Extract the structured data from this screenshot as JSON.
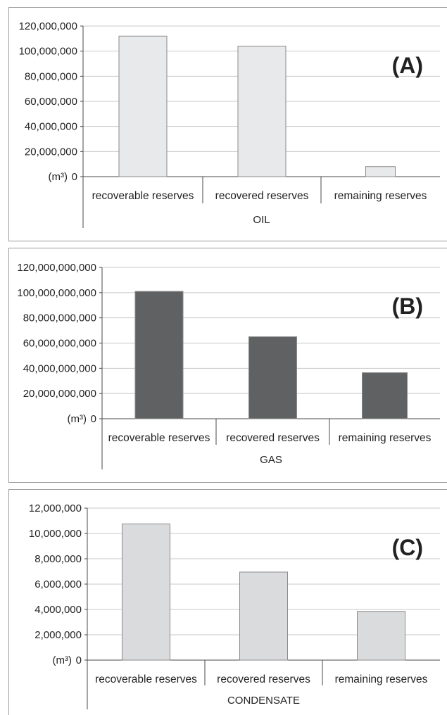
{
  "chart_data": [
    {
      "type": "bar",
      "panel_label": "(A)",
      "group_label": "OIL",
      "unit_label": "(m³)",
      "categories": [
        "recoverable reserves",
        "recovered reserves",
        "remaining reserves"
      ],
      "values": [
        112000000,
        104000000,
        8000000
      ],
      "ylim": [
        0,
        120000000
      ],
      "yticks": [
        "0",
        "20,000,000",
        "40,000,000",
        "60,000,000",
        "80,000,000",
        "100,000,000",
        "120,000,000"
      ],
      "bar_color": "#e8e9ea",
      "grid": true
    },
    {
      "type": "bar",
      "panel_label": "(B)",
      "group_label": "GAS",
      "unit_label": "(m³)",
      "categories": [
        "recoverable reserves",
        "recovered reserves",
        "remaining reserves"
      ],
      "values": [
        101000000000,
        65000000000,
        36500000000
      ],
      "ylim": [
        0,
        120000000000
      ],
      "yticks": [
        "0",
        "20,000,000,000",
        "40,000,000,000",
        "60,000,000,000",
        "80,000,000,000",
        "100,000,000,000",
        "120,000,000,000"
      ],
      "bar_color": "#5f6162",
      "grid": true
    },
    {
      "type": "bar",
      "panel_label": "(C)",
      "group_label": "CONDENSATE",
      "unit_label": "(m³)",
      "categories": [
        "recoverable reserves",
        "recovered reserves",
        "remaining reserves"
      ],
      "values": [
        10750000,
        6950000,
        3850000
      ],
      "ylim": [
        0,
        12000000
      ],
      "yticks": [
        "0",
        "2,000,000",
        "4,000,000",
        "6,000,000",
        "8,000,000",
        "10,000,000",
        "12,000,000"
      ],
      "bar_color": "#dadbdc",
      "grid": true
    }
  ]
}
